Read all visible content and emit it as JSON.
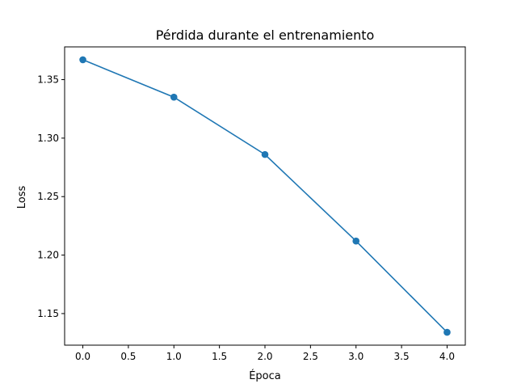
{
  "chart_data": {
    "type": "line",
    "title": "Pérdida durante el entrenamiento",
    "xlabel": "Época",
    "ylabel": "Loss",
    "x": [
      0,
      1,
      2,
      3,
      4
    ],
    "series": [
      {
        "values": [
          1.367,
          1.335,
          1.286,
          1.212,
          1.134
        ]
      }
    ],
    "xlim": [
      -0.2,
      4.2
    ],
    "ylim": [
      1.123,
      1.378
    ],
    "xticks": [
      0,
      0.5,
      1,
      1.5,
      2,
      2.5,
      3,
      3.5,
      4
    ],
    "xtick_labels": [
      "0.0",
      "0.5",
      "1.0",
      "1.5",
      "2.0",
      "2.5",
      "3.0",
      "3.5",
      "4.0"
    ],
    "yticks": [
      1.15,
      1.2,
      1.25,
      1.3,
      1.35
    ],
    "ytick_labels": [
      "1.15",
      "1.20",
      "1.25",
      "1.30",
      "1.35"
    ],
    "grid": false,
    "colors": {
      "line": "#1f77b4"
    }
  }
}
